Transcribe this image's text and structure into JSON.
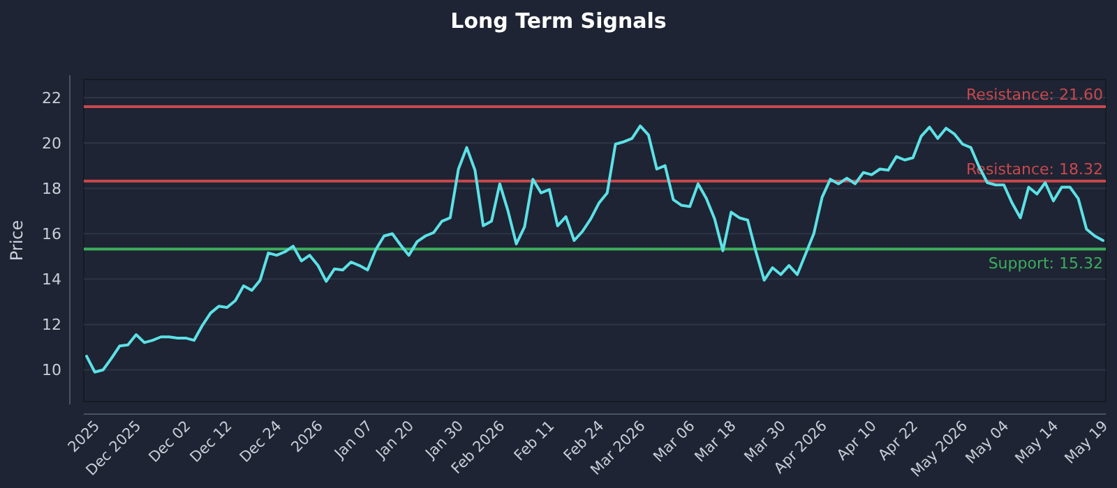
{
  "chart_data": {
    "type": "line",
    "title": "Long Term Signals",
    "ylabel": "Price",
    "categories": [
      null,
      "2025",
      null,
      null,
      null,
      null,
      "Dec 2025",
      null,
      null,
      null,
      null,
      null,
      "Dec 02",
      null,
      null,
      null,
      null,
      "Dec 12",
      null,
      null,
      null,
      null,
      null,
      "Dec 24",
      null,
      null,
      null,
      null,
      "2026",
      null,
      null,
      null,
      null,
      null,
      "Jan 07",
      null,
      null,
      null,
      null,
      "Jan 20",
      null,
      null,
      null,
      null,
      null,
      "Jan 30",
      null,
      null,
      null,
      null,
      "Feb 2026",
      null,
      null,
      null,
      null,
      null,
      "Feb 11",
      null,
      null,
      null,
      null,
      null,
      "Feb 24",
      null,
      null,
      null,
      null,
      "Mar 2026",
      null,
      null,
      null,
      null,
      null,
      "Mar 06",
      null,
      null,
      null,
      null,
      "Mar 18",
      null,
      null,
      null,
      null,
      null,
      "Mar 30",
      null,
      null,
      null,
      null,
      "Apr 2026",
      null,
      null,
      null,
      null,
      null,
      "Apr 10",
      null,
      null,
      null,
      null,
      "Apr 22",
      null,
      null,
      null,
      null,
      null,
      "May 2026",
      null,
      null,
      null,
      null,
      "May 04",
      null,
      null,
      null,
      null,
      null,
      "May 14",
      null,
      null,
      null,
      null,
      null,
      "May 19"
    ],
    "series": [
      {
        "color": "#5ce1e6",
        "values": [
          10.6,
          9.9,
          10.0,
          10.5,
          11.05,
          11.1,
          11.55,
          11.2,
          11.3,
          11.45,
          11.45,
          11.4,
          11.4,
          11.3,
          11.95,
          12.5,
          12.8,
          12.75,
          13.05,
          13.7,
          13.5,
          13.95,
          15.15,
          15.05,
          15.2,
          15.45,
          14.8,
          15.05,
          14.6,
          13.9,
          14.45,
          14.4,
          14.75,
          14.6,
          14.4,
          15.3,
          15.9,
          16.0,
          15.5,
          15.05,
          15.65,
          15.9,
          16.05,
          16.55,
          16.7,
          18.85,
          19.8,
          18.8,
          16.35,
          16.55,
          18.2,
          17.0,
          15.55,
          16.3,
          18.4,
          17.8,
          17.95,
          16.35,
          16.75,
          15.7,
          16.1,
          16.65,
          17.35,
          17.8,
          19.95,
          20.05,
          20.2,
          20.75,
          20.35,
          18.85,
          19.0,
          17.5,
          17.25,
          17.2,
          18.2,
          17.55,
          16.65,
          15.25,
          16.95,
          16.7,
          16.6,
          15.2,
          13.95,
          14.5,
          14.2,
          14.6,
          14.2,
          15.1,
          16.0,
          17.6,
          18.4,
          18.2,
          18.45,
          18.2,
          18.7,
          18.6,
          18.85,
          18.8,
          19.4,
          19.25,
          19.35,
          20.3,
          20.7,
          20.2,
          20.65,
          20.4,
          19.95,
          19.8,
          18.95,
          18.25,
          18.15,
          18.15,
          17.35,
          16.7,
          18.05,
          17.75,
          18.25,
          17.45,
          18.05,
          18.05,
          17.55,
          16.2,
          15.9,
          15.7
        ]
      }
    ],
    "ylim": [
      8.6,
      22.8
    ],
    "yticks": [
      10,
      12,
      14,
      16,
      18,
      20,
      22
    ],
    "grid": "y",
    "line_style": "solid",
    "marker": "none",
    "ref_lines": [
      {
        "axis": "y",
        "value": 21.6,
        "label": "Resistance: 21.60",
        "color": "#c9484d"
      },
      {
        "axis": "y",
        "value": 18.32,
        "label": "Resistance: 18.32",
        "color": "#c9484d"
      },
      {
        "axis": "y",
        "value": 15.32,
        "label": "Support: 15.32",
        "color": "#3dae5c"
      }
    ]
  }
}
